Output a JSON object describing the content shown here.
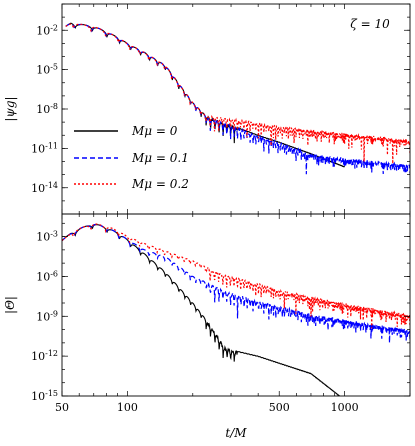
{
  "chart_data": [
    {
      "type": "line",
      "panel": "top",
      "annotation": "ζ = 10",
      "ylabel": "|ψg|",
      "xlabel": "",
      "x_scale": "log",
      "y_scale": "log",
      "xlim": [
        50,
        2000
      ],
      "ylim": [
        1e-16,
        1
      ],
      "y_ticks": [
        {
          "value": 0.01,
          "label": "10-2"
        },
        {
          "value": 1e-05,
          "label": "10-5"
        },
        {
          "value": 1e-08,
          "label": "10-8"
        },
        {
          "value": 1e-11,
          "label": "10-11"
        },
        {
          "value": 1e-14,
          "label": "10-14"
        }
      ],
      "legend": {
        "placement": "lower-left",
        "entries": [
          "Mμ = 0",
          "Mμ = 0.1",
          "Mμ = 0.2"
        ]
      },
      "series": [
        {
          "name": "Mμ = 0",
          "color": "#000000",
          "style": "solid",
          "x": [
            52,
            55,
            60,
            70,
            80,
            90,
            100,
            120,
            150,
            200,
            230,
            300,
            400,
            500,
            700,
            1000
          ],
          "y": [
            0.02,
            0.04,
            0.03,
            0.02,
            0.008,
            0.003,
            0.001,
            0.0002,
            2e-05,
            3e-08,
            3e-09,
            6e-10,
            1e-10,
            3e-11,
            4e-12,
            4e-13
          ]
        },
        {
          "name": "Mμ = 0.1",
          "color": "#0000ff",
          "style": "dashed",
          "x": [
            52,
            55,
            60,
            70,
            80,
            90,
            100,
            120,
            150,
            200,
            230,
            300,
            400,
            500,
            700,
            1000,
            1500,
            2000
          ],
          "y": [
            0.02,
            0.04,
            0.03,
            0.02,
            0.008,
            0.003,
            0.001,
            0.0002,
            2e-05,
            3e-08,
            3e-09,
            6e-10,
            1e-10,
            3e-11,
            4e-12,
            2e-12,
            1e-12,
            6e-13
          ]
        },
        {
          "name": "Mμ = 0.2",
          "color": "#ff0000",
          "style": "dotted",
          "x": [
            52,
            55,
            60,
            70,
            80,
            90,
            100,
            120,
            150,
            200,
            230,
            300,
            400,
            500,
            700,
            1000,
            1500,
            2000
          ],
          "y": [
            0.02,
            0.04,
            0.03,
            0.02,
            0.008,
            0.003,
            0.001,
            0.0002,
            2e-05,
            3e-08,
            3e-09,
            2e-09,
            1e-09,
            5e-10,
            3e-10,
            1.5e-10,
            8e-11,
            5e-11
          ]
        }
      ]
    },
    {
      "type": "line",
      "panel": "bottom",
      "ylabel": "|Θ|",
      "xlabel": "t/M",
      "x_scale": "log",
      "y_scale": "log",
      "xlim": [
        50,
        2000
      ],
      "ylim": [
        1e-15,
        0.05
      ],
      "x_ticks": [
        {
          "value": 50,
          "label": "50"
        },
        {
          "value": 100,
          "label": "100"
        },
        {
          "value": 500,
          "label": "500"
        },
        {
          "value": 1000,
          "label": "1000"
        }
      ],
      "y_ticks": [
        {
          "value": 0.001,
          "label": "10-3"
        },
        {
          "value": 1e-06,
          "label": "10-6"
        },
        {
          "value": 1e-09,
          "label": "10-9"
        },
        {
          "value": 1e-12,
          "label": "10-12"
        },
        {
          "value": 1e-15,
          "label": "10-15"
        }
      ],
      "series": [
        {
          "name": "Mμ = 0",
          "color": "#000000",
          "style": "solid",
          "x": [
            50,
            55,
            60,
            70,
            80,
            90,
            100,
            120,
            150,
            200,
            250,
            280,
            300,
            400,
            500,
            700,
            950
          ],
          "y": [
            0.0005,
            0.002,
            0.004,
            0.01,
            0.005,
            0.002,
            0.0006,
            5e-05,
            2e-06,
            1e-08,
            1e-10,
            5e-12,
            3e-12,
            1e-12,
            3e-13,
            5e-14,
            1e-15
          ]
        },
        {
          "name": "Mμ = 0.1",
          "color": "#0000ff",
          "style": "dashed",
          "x": [
            50,
            55,
            60,
            70,
            80,
            90,
            100,
            120,
            150,
            200,
            250,
            300,
            400,
            500,
            700,
            1000,
            1500,
            2000
          ],
          "y": [
            0.0005,
            0.002,
            0.004,
            0.01,
            0.005,
            0.002,
            0.0006,
            0.0001,
            3e-05,
            1e-06,
            2e-07,
            6e-08,
            1.5e-08,
            6e-09,
            1.5e-09,
            6e-10,
            2e-10,
            1e-10
          ]
        },
        {
          "name": "Mμ = 0.2",
          "color": "#ff0000",
          "style": "dotted",
          "x": [
            50,
            55,
            60,
            70,
            80,
            90,
            100,
            120,
            150,
            200,
            250,
            300,
            400,
            500,
            700,
            1000,
            1500,
            2000
          ],
          "y": [
            0.0005,
            0.002,
            0.004,
            0.01,
            0.006,
            0.003,
            0.001,
            0.0003,
            8e-05,
            1.5e-05,
            3e-06,
            1e-06,
            3e-07,
            1e-07,
            3e-08,
            1e-08,
            3e-09,
            1.5e-09
          ]
        }
      ]
    }
  ]
}
